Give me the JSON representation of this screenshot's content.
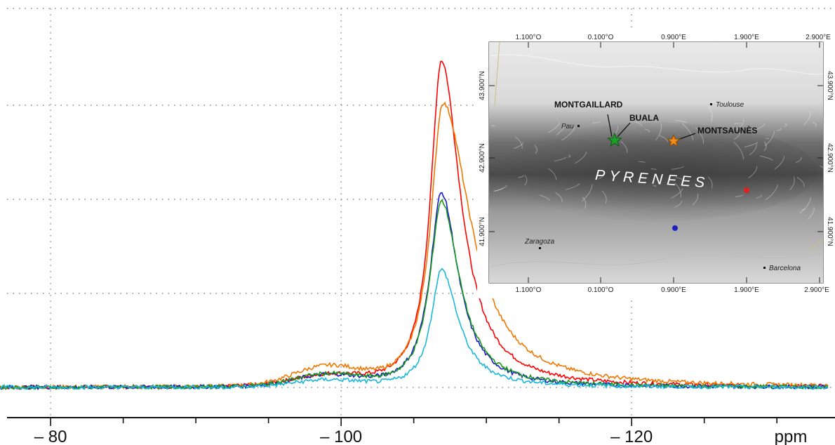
{
  "chart_data": {
    "type": "line",
    "title": "",
    "xlabel": "",
    "ylabel": "",
    "x_unit": "ppm",
    "x_axis_reversed": true,
    "xlim": [
      -77,
      -134
    ],
    "x_ticks": [
      -80,
      -100,
      -120
    ],
    "x_tick_labels": [
      "– 80",
      "– 100",
      "– 120"
    ],
    "y_range": [
      0,
      1
    ],
    "grid": "dotted",
    "legend": "none",
    "series": [
      {
        "color": "#ff0000",
        "baseline": 0,
        "peak_x": -106.9,
        "peak_y": 1.0,
        "width_left": 0.9,
        "width_right": 1.6,
        "bump_y": 0.03
      },
      {
        "color": "#f07800",
        "baseline": 0,
        "peak_x": -107.0,
        "peak_y": 0.87,
        "width_left": 1.0,
        "width_right": 2.3,
        "bump_y": 0.055
      },
      {
        "color": "#1a1acc",
        "baseline": 0,
        "peak_x": -106.9,
        "peak_y": 0.595,
        "width_left": 0.95,
        "width_right": 1.4,
        "bump_y": 0.032
      },
      {
        "color": "#1a9a1a",
        "baseline": 0,
        "peak_x": -106.9,
        "peak_y": 0.57,
        "width_left": 0.95,
        "width_right": 1.5,
        "bump_y": 0.035
      },
      {
        "color": "#18b8d8",
        "baseline": 0,
        "peak_x": -106.9,
        "peak_y": 0.36,
        "width_left": 0.85,
        "width_right": 1.4,
        "bump_y": 0.02
      }
    ]
  },
  "map_inset": {
    "top_ticks": [
      "1.100°O",
      "0.100°O",
      "0.900°E",
      "1.900°E",
      "2.900°E"
    ],
    "bottom_ticks": [
      "1.100°O",
      "0.100°O",
      "0.900°E",
      "1.900°E",
      "2.900°E"
    ],
    "left_ticks": [
      "43.900°N",
      "42.900°N",
      "41.900°N"
    ],
    "right_ticks": [
      "43.900°N",
      "42.900°N",
      "41.900°N"
    ],
    "region_label": "PYRENEES",
    "sites": [
      "MONTGAILLARD",
      "BUALA",
      "MONTSAUNÈS"
    ],
    "cities": [
      "Toulouse",
      "Pau",
      "Zaragoza",
      "Barcelona"
    ],
    "colors": {
      "montgaillard_star": "#1e9e2a",
      "montsaunes_star": "#f08a18",
      "red_dot": "#e02020",
      "blue_dot": "#2020c0"
    }
  }
}
